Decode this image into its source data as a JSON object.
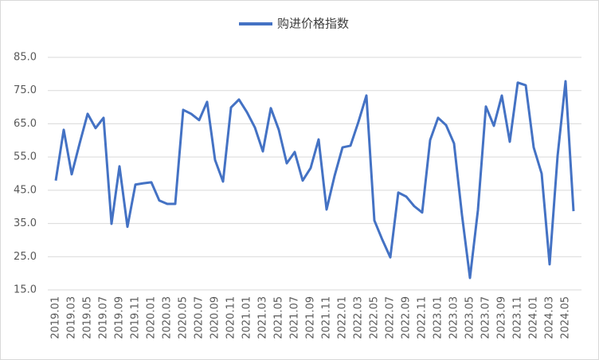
{
  "chart_data": {
    "type": "line",
    "categories": [
      "2019.01",
      null,
      "2019.03",
      null,
      "2019.05",
      null,
      "2019.07",
      null,
      "2019.09",
      null,
      "2019.11",
      null,
      "2020.01",
      null,
      "2020.03",
      null,
      "2020.05",
      null,
      "2020.07",
      null,
      "2020.09",
      null,
      "2020.11",
      null,
      "2021.01",
      null,
      "2021.03",
      null,
      "2021.05",
      null,
      "2021.07",
      null,
      "2021.09",
      null,
      "2021.11",
      null,
      "2022.01",
      null,
      "2022.03",
      null,
      "2022.05",
      null,
      "2022.07",
      null,
      "2022.09",
      null,
      "2022.11",
      null,
      "2023.01",
      null,
      "2023.03",
      null,
      "2023.05",
      null,
      "2023.07",
      null,
      "2023.09",
      null,
      "2023.11",
      null,
      "2024.01",
      null,
      "2024.03",
      null,
      "2024.05",
      null
    ],
    "series": [
      {
        "name": "购进价格指数",
        "color": "#4472c4",
        "values": [
          47.9,
          63.2,
          49.8,
          59.1,
          68,
          63.7,
          66.8,
          34.9,
          52.2,
          34,
          46.7,
          47.1,
          47.4,
          41.9,
          40.9,
          40.9,
          69.2,
          68,
          66.1,
          71.6,
          54.1,
          47.6,
          69.9,
          72.3,
          68.5,
          63.9,
          56.7,
          69.7,
          63.2,
          53.1,
          56.5,
          47.9,
          51.7,
          60.3,
          39.2,
          49.3,
          57.9,
          58.4,
          65.6,
          73.5,
          35.9,
          30.1,
          24.8,
          44.3,
          43.1,
          40.2,
          38.3,
          60.1,
          66.8,
          64.6,
          59.1,
          37.5,
          18.6,
          39,
          70.2,
          64.4,
          73.5,
          59.6,
          77.4,
          76.6,
          57.9,
          50,
          22.7,
          55.3,
          77.8,
          38.7
        ]
      }
    ],
    "ylim": [
      15,
      85
    ],
    "yticks": [
      {
        "value": 15,
        "label": "15.0"
      },
      {
        "value": 25,
        "label": "25.0"
      },
      {
        "value": 35,
        "label": "35.0"
      },
      {
        "value": 45,
        "label": "45.0"
      },
      {
        "value": 55,
        "label": "55.0"
      },
      {
        "value": 65,
        "label": "65.0"
      },
      {
        "value": 75,
        "label": "75.0"
      },
      {
        "value": 85,
        "label": "85.0"
      }
    ],
    "grid": true,
    "legend": "top"
  }
}
